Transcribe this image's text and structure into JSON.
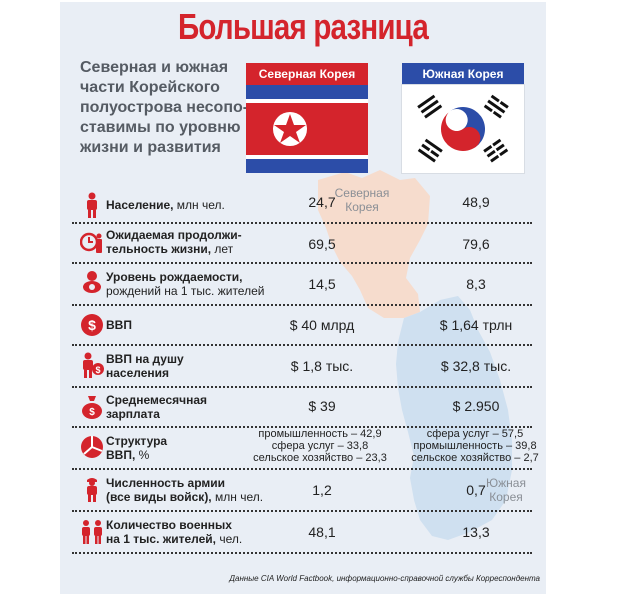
{
  "title": "Большая разница",
  "subtitle": "Северная и южная части Корейского полуострова несопоставимы по уровню жизни и развития",
  "subtitle_lines": [
    "Северная и южная",
    "части Корейского",
    "полуострова несопо-",
    "ставимы по уровню",
    "жизни и развития"
  ],
  "countries": {
    "north": "Северная Корея",
    "south": "Южная Корея"
  },
  "map_labels": {
    "north": [
      "Северная",
      "Корея"
    ],
    "south": [
      "Южная",
      "Корея"
    ]
  },
  "rows": [
    {
      "icon": "person-icon",
      "label_bold": "Население,",
      "label_rest": " млн чел.",
      "lines": [],
      "north": "24,7",
      "south": "48,9"
    },
    {
      "icon": "clock-person-icon",
      "label_bold": "Ожидаемая продолжи-",
      "label_bold2": "тельность жизни,",
      "label_rest": " лет",
      "north": "69,5",
      "south": "79,6"
    },
    {
      "icon": "baby-icon",
      "label_bold": "Уровень рождаемости,",
      "label_line2": "рождений на 1 тыс. жителей",
      "north": "14,5",
      "south": "8,3"
    },
    {
      "icon": "dollar-icon",
      "label_bold": "ВВП",
      "north": "$ 40 млрд",
      "south": "$ 1,64 трлн"
    },
    {
      "icon": "person-dollar-icon",
      "label_bold": "ВВП на душу",
      "label_bold2": "населения",
      "north": "$ 1,8 тыс.",
      "south": "$ 32,8 тыс."
    },
    {
      "icon": "money-bag-icon",
      "label_bold": "Среднемесячная",
      "label_bold2": "зарплата",
      "north": "$ 39",
      "south": "$ 2.950"
    },
    {
      "icon": "pie-chart-icon",
      "label_bold": "Структура",
      "label_bold2": "ВВП,",
      "label_rest2": " %",
      "north_lines": [
        "промышленность – 42,9",
        "сфера услуг – 33,8",
        "сельское хозяйство – 23,3"
      ],
      "south_lines": [
        "сфера услуг – 57,5",
        "промышленность – 39,8",
        "сельское хозяйство – 2,7"
      ]
    },
    {
      "icon": "soldier-icon",
      "label_bold": "Численность армии",
      "label_bold2": "(все виды войск),",
      "label_rest2": " млн чел.",
      "north": "1,2",
      "south": "0,7"
    },
    {
      "icon": "soldiers-icon",
      "label_bold": "Количество военных",
      "label_bold2": "на 1 тыс. жителей,",
      "label_rest2": " чел.",
      "north": "48,1",
      "south": "13,3"
    }
  ],
  "footer": "Данные CIA World Factbook, информационно-справочной службы Корреспондента",
  "colors": {
    "accent_red": "#d4242c",
    "accent_blue": "#2c4da8",
    "panel": "#e9eef5",
    "north_map": "#f6dccd",
    "south_map": "#cfe0f0"
  }
}
